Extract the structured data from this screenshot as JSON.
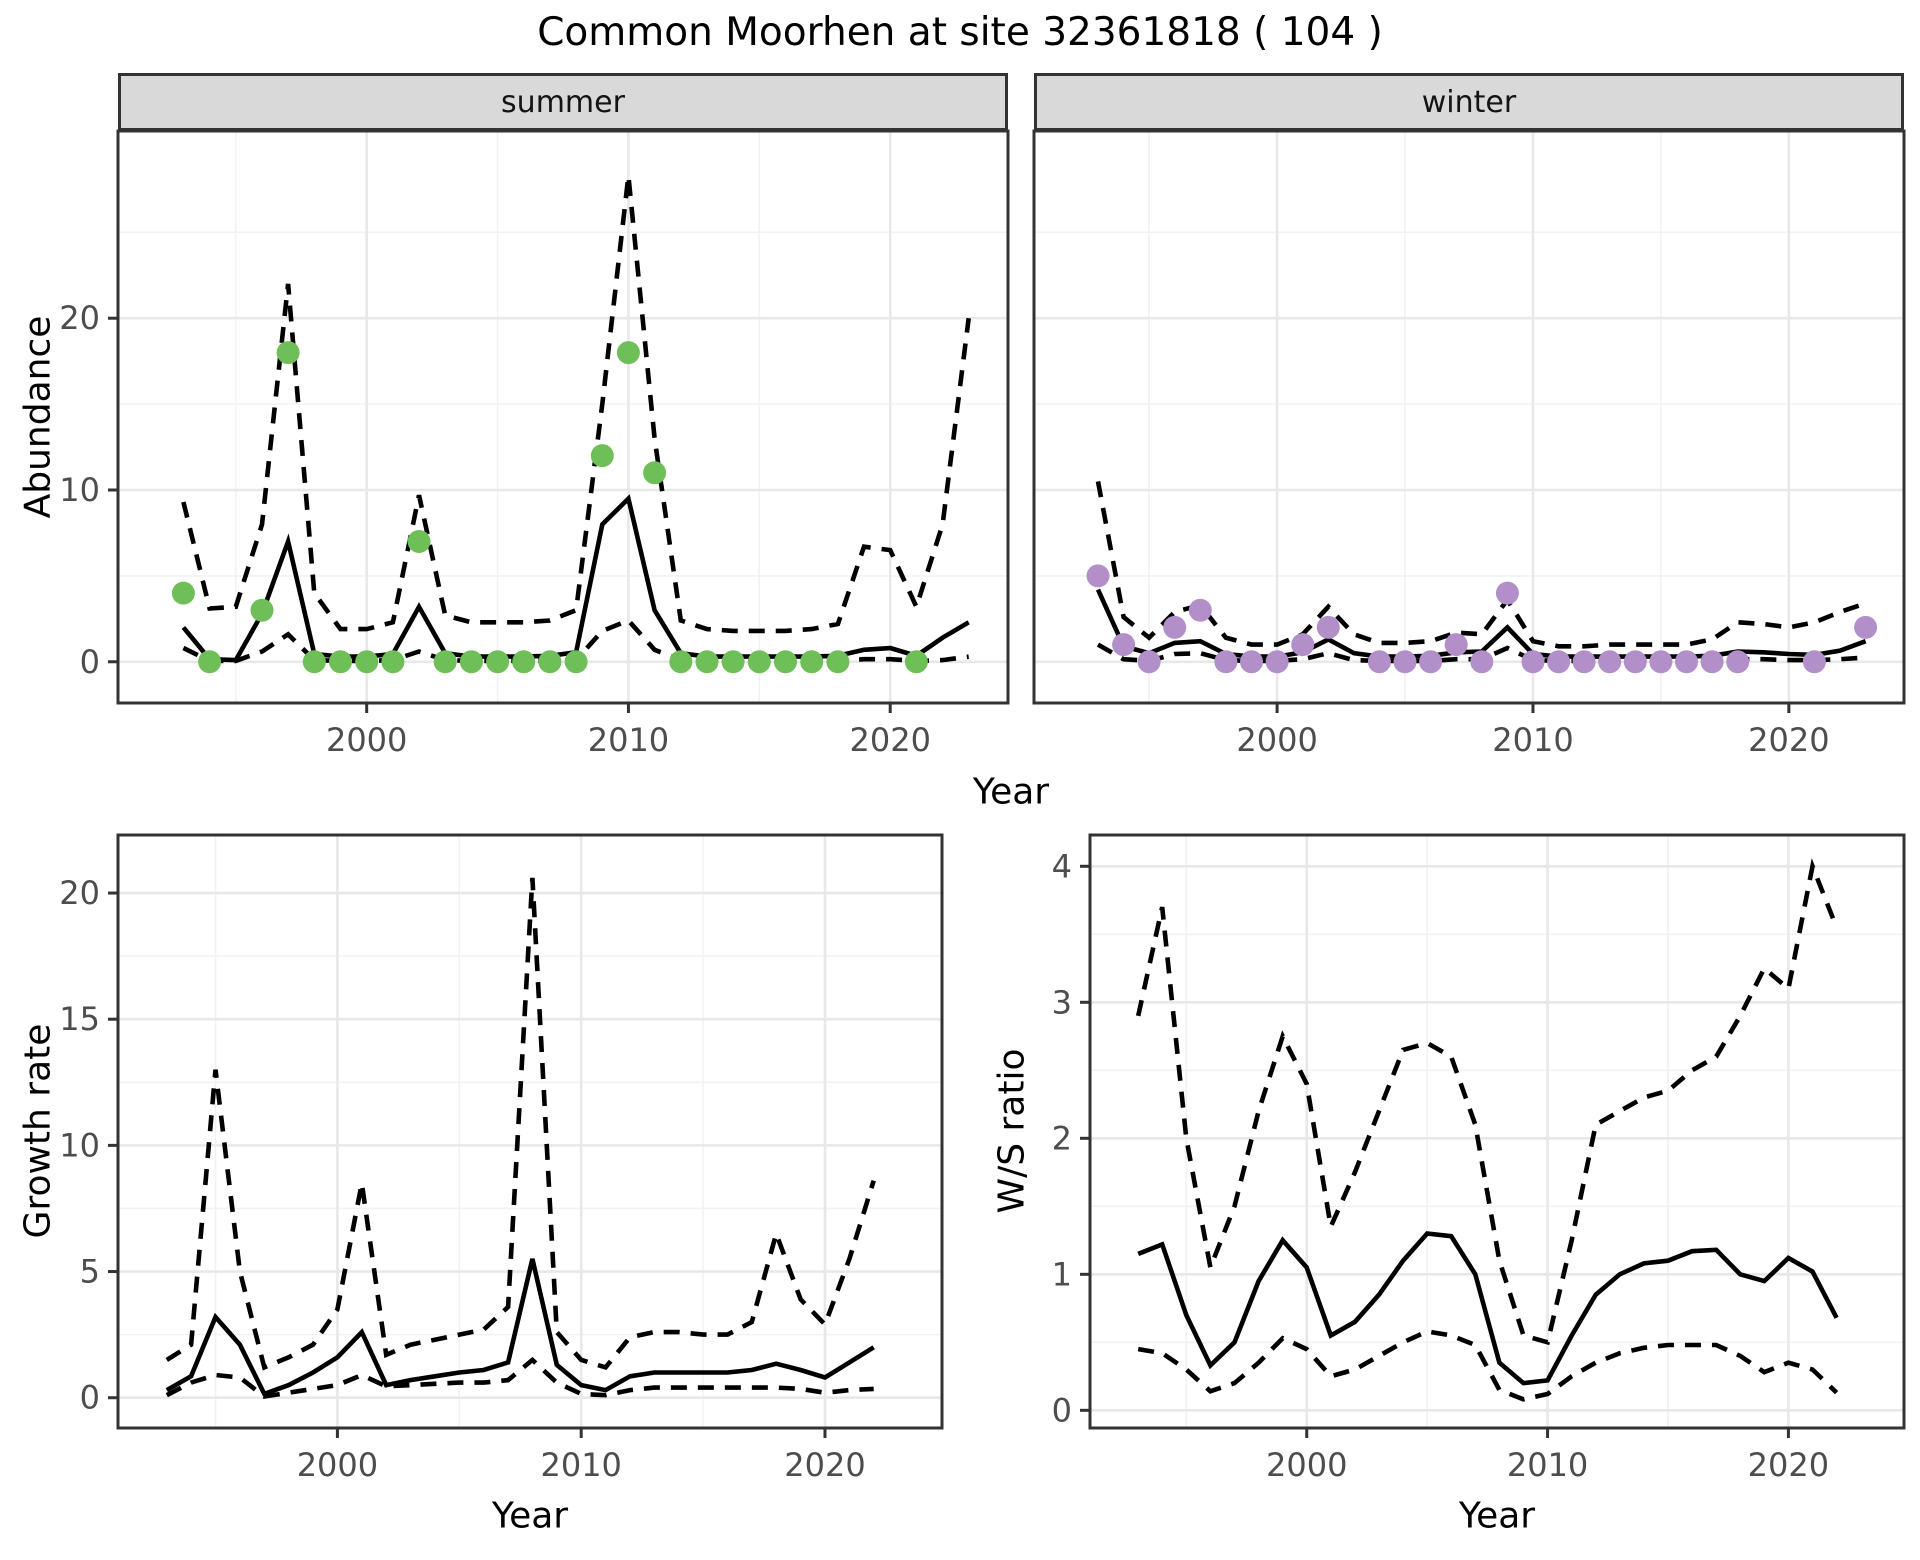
{
  "title": "Common Moorhen at site 32361818 ( 104 )",
  "facets": [
    {
      "label": "summer"
    },
    {
      "label": "winter"
    }
  ],
  "axes": {
    "x_label": "Year",
    "abundance_label": "Abundance",
    "growth_label": "Growth rate",
    "ws_label": "W/S ratio"
  },
  "colors": {
    "summer_point": "#6FBF58",
    "winter_point": "#B28FC9",
    "line": "#000000",
    "grid_major": "#E8E8E8",
    "grid_minor": "#F2F2F2",
    "strip_bg": "#D9D9D9",
    "panel_border": "#333333",
    "tick_label": "#4D4D4D",
    "background": "#FFFFFF"
  },
  "chart_data": [
    {
      "id": "summer",
      "type": "line",
      "facet_label": "summer",
      "xlabel": "Year",
      "ylabel": "Abundance",
      "xlim": [
        1990.5,
        2024.5
      ],
      "ylim": [
        -2.4,
        30.9
      ],
      "x_ticks": [
        2000,
        2010,
        2020
      ],
      "x_minor": [
        1995,
        2005,
        2015
      ],
      "y_ticks": [
        0,
        10,
        20
      ],
      "y_minor": [
        5,
        15,
        25
      ],
      "show_y_labels": true,
      "legend": "off",
      "grid": "on",
      "x": [
        1993,
        1994,
        1995,
        1996,
        1997,
        1998,
        1999,
        2000,
        2001,
        2002,
        2003,
        2004,
        2005,
        2006,
        2007,
        2008,
        2009,
        2010,
        2011,
        2012,
        2013,
        2014,
        2015,
        2016,
        2017,
        2018,
        2019,
        2020,
        2021,
        2022,
        2023
      ],
      "series": [
        {
          "name": "model_median",
          "type": "line",
          "style": "solid",
          "color": "#000000",
          "values": [
            2.0,
            0.15,
            0.1,
            2.8,
            7.0,
            0.45,
            0.3,
            0.3,
            0.45,
            3.2,
            0.5,
            0.3,
            0.3,
            0.3,
            0.35,
            0.55,
            8.0,
            9.5,
            3.0,
            0.5,
            0.3,
            0.3,
            0.3,
            0.3,
            0.3,
            0.35,
            0.7,
            0.8,
            0.35,
            1.4,
            2.3
          ]
        },
        {
          "name": "upper_ci",
          "type": "line",
          "style": "dashed",
          "color": "#000000",
          "values": [
            9.3,
            3.1,
            3.2,
            8.0,
            22.0,
            4.0,
            1.9,
            1.9,
            2.3,
            9.7,
            2.7,
            2.3,
            2.3,
            2.3,
            2.4,
            3.0,
            15.0,
            28.3,
            13.0,
            2.4,
            1.9,
            1.8,
            1.8,
            1.8,
            1.9,
            2.2,
            6.7,
            6.5,
            3.2,
            8.0,
            20.0
          ]
        },
        {
          "name": "lower_ci",
          "type": "line",
          "style": "dashed",
          "color": "#000000",
          "values": [
            0.8,
            0.05,
            0.05,
            0.6,
            1.6,
            0.1,
            0.05,
            0.05,
            0.1,
            0.6,
            0.1,
            0.05,
            0.05,
            0.05,
            0.05,
            0.1,
            1.8,
            2.4,
            0.7,
            0.1,
            0.05,
            0.05,
            0.05,
            0.05,
            0.05,
            0.05,
            0.15,
            0.15,
            0.05,
            0.1,
            0.3
          ]
        },
        {
          "name": "observed_counts",
          "type": "points",
          "color": "#6FBF58",
          "values": [
            4,
            0,
            null,
            3,
            18,
            0,
            0,
            0,
            0,
            7,
            0,
            0,
            0,
            0,
            0,
            0,
            12,
            18,
            11,
            0,
            0,
            0,
            0,
            0,
            0,
            0,
            null,
            null,
            0,
            null,
            null
          ]
        }
      ]
    },
    {
      "id": "winter",
      "type": "line",
      "facet_label": "winter",
      "xlabel": "Year",
      "ylabel": "Abundance",
      "xlim": [
        1990.5,
        2024.5
      ],
      "ylim": [
        -2.4,
        30.9
      ],
      "x_ticks": [
        2000,
        2010,
        2020
      ],
      "x_minor": [
        1995,
        2005,
        2015
      ],
      "y_ticks": [
        0,
        10,
        20
      ],
      "y_minor": [
        5,
        15,
        25
      ],
      "show_y_labels": false,
      "legend": "off",
      "grid": "on",
      "x": [
        1993,
        1994,
        1995,
        1996,
        1997,
        1998,
        1999,
        2000,
        2001,
        2002,
        2003,
        2004,
        2005,
        2006,
        2007,
        2008,
        2009,
        2010,
        2011,
        2012,
        2013,
        2014,
        2015,
        2016,
        2017,
        2018,
        2019,
        2020,
        2021,
        2022,
        2023
      ],
      "series": [
        {
          "name": "model_median",
          "type": "line",
          "style": "solid",
          "color": "#000000",
          "values": [
            4.2,
            0.9,
            0.5,
            1.1,
            1.2,
            0.45,
            0.3,
            0.3,
            0.55,
            1.3,
            0.5,
            0.3,
            0.3,
            0.35,
            0.55,
            0.6,
            2.0,
            0.45,
            0.3,
            0.3,
            0.3,
            0.3,
            0.3,
            0.3,
            0.35,
            0.6,
            0.55,
            0.45,
            0.4,
            0.65,
            1.2
          ]
        },
        {
          "name": "upper_ci",
          "type": "line",
          "style": "dashed",
          "color": "#000000",
          "values": [
            10.5,
            2.6,
            1.4,
            2.9,
            3.3,
            1.4,
            1.0,
            1.0,
            1.6,
            3.2,
            1.6,
            1.1,
            1.1,
            1.2,
            1.7,
            1.6,
            3.6,
            1.2,
            0.9,
            0.9,
            1.0,
            1.0,
            1.0,
            1.0,
            1.3,
            2.3,
            2.2,
            2.0,
            2.3,
            2.9,
            3.4
          ]
        },
        {
          "name": "lower_ci",
          "type": "line",
          "style": "dashed",
          "color": "#000000",
          "values": [
            1.0,
            0.15,
            0.05,
            0.45,
            0.5,
            0.1,
            0.05,
            0.05,
            0.15,
            0.5,
            0.1,
            0.05,
            0.05,
            0.05,
            0.15,
            0.15,
            0.8,
            0.1,
            0.05,
            0.05,
            0.05,
            0.05,
            0.05,
            0.05,
            0.05,
            0.15,
            0.15,
            0.1,
            0.1,
            0.15,
            0.25
          ]
        },
        {
          "name": "observed_counts",
          "type": "points",
          "color": "#B28FC9",
          "values": [
            5,
            1,
            0,
            2,
            3,
            0,
            0,
            0,
            1,
            2,
            null,
            0,
            0,
            0,
            1,
            0,
            4,
            0,
            0,
            0,
            0,
            0,
            0,
            0,
            0,
            0,
            null,
            null,
            0,
            null,
            2
          ]
        }
      ]
    },
    {
      "id": "growth",
      "type": "line",
      "facet_label": null,
      "xlabel": "Year",
      "ylabel": "Growth rate",
      "xlim": [
        1991.0,
        2024.8
      ],
      "ylim": [
        -1.2,
        22.3
      ],
      "x_ticks": [
        2000,
        2010,
        2020
      ],
      "x_minor": [
        1995,
        2005,
        2015
      ],
      "y_ticks": [
        0,
        5,
        10,
        15,
        20
      ],
      "y_minor": [
        2.5,
        7.5,
        12.5,
        17.5
      ],
      "show_y_labels": true,
      "legend": "off",
      "grid": "on",
      "x": [
        1993,
        1994,
        1995,
        1996,
        1997,
        1998,
        1999,
        2000,
        2001,
        2002,
        2003,
        2004,
        2005,
        2006,
        2007,
        2008,
        2009,
        2010,
        2011,
        2012,
        2013,
        2014,
        2015,
        2016,
        2017,
        2018,
        2019,
        2020,
        2021,
        2022
      ],
      "series": [
        {
          "name": "growth_median",
          "type": "line",
          "style": "solid",
          "color": "#000000",
          "values": [
            0.3,
            0.85,
            3.2,
            2.1,
            0.15,
            0.5,
            1.0,
            1.6,
            2.6,
            0.5,
            0.7,
            0.85,
            1.0,
            1.1,
            1.4,
            5.5,
            1.3,
            0.5,
            0.3,
            0.85,
            1.0,
            1.0,
            1.0,
            1.0,
            1.1,
            1.35,
            1.1,
            0.8,
            1.4,
            2.0
          ]
        },
        {
          "name": "upper_ci",
          "type": "line",
          "style": "dashed",
          "color": "#000000",
          "values": [
            1.5,
            2.1,
            13.0,
            5.0,
            1.2,
            1.6,
            2.1,
            3.5,
            8.5,
            1.7,
            2.1,
            2.3,
            2.5,
            2.7,
            3.6,
            20.6,
            2.6,
            1.5,
            1.2,
            2.4,
            2.6,
            2.6,
            2.5,
            2.5,
            3.0,
            6.5,
            3.9,
            2.9,
            5.5,
            8.6
          ]
        },
        {
          "name": "lower_ci",
          "type": "line",
          "style": "dashed",
          "color": "#000000",
          "values": [
            0.1,
            0.6,
            0.9,
            0.8,
            0.05,
            0.2,
            0.35,
            0.5,
            0.9,
            0.45,
            0.5,
            0.55,
            0.6,
            0.6,
            0.7,
            1.5,
            0.6,
            0.15,
            0.1,
            0.3,
            0.4,
            0.4,
            0.4,
            0.4,
            0.4,
            0.4,
            0.35,
            0.2,
            0.3,
            0.35
          ]
        }
      ]
    },
    {
      "id": "ws",
      "type": "line",
      "facet_label": null,
      "xlabel": "Year",
      "ylabel": "W/S ratio",
      "xlim": [
        1991.0,
        2024.8
      ],
      "ylim": [
        -0.13,
        4.23
      ],
      "x_ticks": [
        2000,
        2010,
        2020
      ],
      "x_minor": [
        1995,
        2005,
        2015
      ],
      "y_ticks": [
        0,
        1,
        2,
        3,
        4
      ],
      "y_minor": [
        0.5,
        1.5,
        2.5,
        3.5
      ],
      "show_y_labels": true,
      "legend": "off",
      "grid": "on",
      "x": [
        1993,
        1994,
        1995,
        1996,
        1997,
        1998,
        1999,
        2000,
        2001,
        2002,
        2003,
        2004,
        2005,
        2006,
        2007,
        2008,
        2009,
        2010,
        2011,
        2012,
        2013,
        2014,
        2015,
        2016,
        2017,
        2018,
        2019,
        2020,
        2021,
        2022
      ],
      "series": [
        {
          "name": "ratio_median",
          "type": "line",
          "style": "solid",
          "color": "#000000",
          "values": [
            1.15,
            1.22,
            0.7,
            0.33,
            0.5,
            0.95,
            1.25,
            1.05,
            0.55,
            0.65,
            0.85,
            1.1,
            1.3,
            1.28,
            1.0,
            0.35,
            0.2,
            0.22,
            0.55,
            0.85,
            1.0,
            1.08,
            1.1,
            1.17,
            1.18,
            1.0,
            0.95,
            1.12,
            1.02,
            0.68
          ]
        },
        {
          "name": "upper_ci",
          "type": "line",
          "style": "dashed",
          "color": "#000000",
          "values": [
            2.9,
            3.7,
            2.0,
            1.05,
            1.5,
            2.2,
            2.75,
            2.4,
            1.35,
            1.75,
            2.2,
            2.65,
            2.7,
            2.6,
            2.1,
            1.1,
            0.55,
            0.5,
            1.25,
            2.1,
            2.2,
            2.3,
            2.35,
            2.5,
            2.6,
            2.9,
            3.25,
            3.1,
            4.0,
            3.55
          ]
        },
        {
          "name": "lower_ci",
          "type": "line",
          "style": "dashed",
          "color": "#000000",
          "values": [
            0.45,
            0.42,
            0.3,
            0.14,
            0.2,
            0.35,
            0.53,
            0.45,
            0.25,
            0.3,
            0.4,
            0.5,
            0.58,
            0.55,
            0.48,
            0.15,
            0.08,
            0.12,
            0.25,
            0.35,
            0.42,
            0.46,
            0.48,
            0.48,
            0.48,
            0.4,
            0.28,
            0.35,
            0.3,
            0.13
          ]
        }
      ]
    }
  ]
}
